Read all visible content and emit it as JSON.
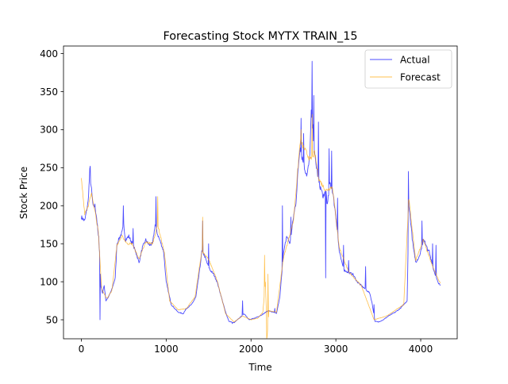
{
  "chart_data": {
    "type": "line",
    "title": "Forecasting Stock MYTX TRAIN_15",
    "xlabel": "Time",
    "ylabel": "Stock Price",
    "xlim": [
      -210,
      4430
    ],
    "ylim": [
      25,
      410
    ],
    "xticks": [
      0,
      1000,
      2000,
      3000,
      4000
    ],
    "yticks": [
      50,
      100,
      150,
      200,
      250,
      300,
      350,
      400
    ],
    "grid": false,
    "legend_position": "top-right",
    "series": [
      {
        "name": "Actual",
        "color": "#0000ff",
        "alpha": 0.7,
        "knots": [
          [
            0,
            185
          ],
          [
            40,
            180
          ],
          [
            60,
            192
          ],
          [
            80,
            205
          ],
          [
            100,
            245
          ],
          [
            120,
            220
          ],
          [
            140,
            198
          ],
          [
            160,
            200
          ],
          [
            180,
            185
          ],
          [
            200,
            160
          ],
          [
            215,
            140
          ],
          [
            230,
            95
          ],
          [
            250,
            85
          ],
          [
            270,
            95
          ],
          [
            290,
            75
          ],
          [
            320,
            80
          ],
          [
            360,
            90
          ],
          [
            400,
            105
          ],
          [
            420,
            150
          ],
          [
            450,
            158
          ],
          [
            480,
            165
          ],
          [
            500,
            175
          ],
          [
            520,
            155
          ],
          [
            560,
            160
          ],
          [
            600,
            150
          ],
          [
            640,
            140
          ],
          [
            680,
            125
          ],
          [
            720,
            145
          ],
          [
            760,
            155
          ],
          [
            800,
            148
          ],
          [
            840,
            150
          ],
          [
            870,
            175
          ],
          [
            900,
            162
          ],
          [
            940,
            150
          ],
          [
            970,
            140
          ],
          [
            1000,
            100
          ],
          [
            1030,
            85
          ],
          [
            1060,
            70
          ],
          [
            1100,
            65
          ],
          [
            1140,
            60
          ],
          [
            1200,
            58
          ],
          [
            1240,
            65
          ],
          [
            1300,
            70
          ],
          [
            1350,
            80
          ],
          [
            1400,
            120
          ],
          [
            1420,
            140
          ],
          [
            1450,
            135
          ],
          [
            1480,
            125
          ],
          [
            1520,
            115
          ],
          [
            1560,
            110
          ],
          [
            1600,
            100
          ],
          [
            1650,
            80
          ],
          [
            1700,
            60
          ],
          [
            1740,
            48
          ],
          [
            1800,
            46
          ],
          [
            1860,
            52
          ],
          [
            1920,
            58
          ],
          [
            1980,
            50
          ],
          [
            2040,
            52
          ],
          [
            2100,
            55
          ],
          [
            2150,
            58
          ],
          [
            2200,
            62
          ],
          [
            2260,
            60
          ],
          [
            2300,
            58
          ],
          [
            2340,
            80
          ],
          [
            2380,
            135
          ],
          [
            2420,
            160
          ],
          [
            2460,
            150
          ],
          [
            2500,
            185
          ],
          [
            2530,
            205
          ],
          [
            2560,
            255
          ],
          [
            2580,
            280
          ],
          [
            2600,
            265
          ],
          [
            2630,
            250
          ],
          [
            2660,
            240
          ],
          [
            2690,
            260
          ],
          [
            2710,
            320
          ],
          [
            2730,
            300
          ],
          [
            2750,
            265
          ],
          [
            2780,
            245
          ],
          [
            2800,
            230
          ],
          [
            2830,
            220
          ],
          [
            2860,
            210
          ],
          [
            2880,
            225
          ],
          [
            2900,
            200
          ],
          [
            2930,
            230
          ],
          [
            2960,
            220
          ],
          [
            2990,
            195
          ],
          [
            3010,
            175
          ],
          [
            3040,
            140
          ],
          [
            3070,
            125
          ],
          [
            3100,
            115
          ],
          [
            3150,
            112
          ],
          [
            3200,
            110
          ],
          [
            3250,
            100
          ],
          [
            3300,
            95
          ],
          [
            3350,
            90
          ],
          [
            3400,
            85
          ],
          [
            3430,
            70
          ],
          [
            3460,
            48
          ],
          [
            3500,
            47
          ],
          [
            3560,
            50
          ],
          [
            3620,
            55
          ],
          [
            3700,
            60
          ],
          [
            3760,
            65
          ],
          [
            3800,
            70
          ],
          [
            3840,
            75
          ],
          [
            3860,
            200
          ],
          [
            3880,
            180
          ],
          [
            3910,
            150
          ],
          [
            3940,
            125
          ],
          [
            3970,
            130
          ],
          [
            4000,
            140
          ],
          [
            4030,
            155
          ],
          [
            4060,
            150
          ],
          [
            4100,
            140
          ],
          [
            4140,
            120
          ],
          [
            4170,
            110
          ],
          [
            4200,
            100
          ],
          [
            4230,
            95
          ]
        ],
        "spikes": [
          [
            105,
            252
          ],
          [
            205,
            160
          ],
          [
            220,
            50
          ],
          [
            495,
            200
          ],
          [
            610,
            170
          ],
          [
            880,
            212
          ],
          [
            1430,
            180
          ],
          [
            1500,
            150
          ],
          [
            1780,
            45
          ],
          [
            1900,
            75
          ],
          [
            2280,
            65
          ],
          [
            2370,
            200
          ],
          [
            2470,
            185
          ],
          [
            2590,
            315
          ],
          [
            2620,
            295
          ],
          [
            2720,
            390
          ],
          [
            2740,
            345
          ],
          [
            2795,
            310
          ],
          [
            2850,
            210
          ],
          [
            2880,
            105
          ],
          [
            2920,
            275
          ],
          [
            2950,
            272
          ],
          [
            3020,
            210
          ],
          [
            3090,
            148
          ],
          [
            3150,
            128
          ],
          [
            3350,
            120
          ],
          [
            3450,
            70
          ],
          [
            3855,
            245
          ],
          [
            3900,
            155
          ],
          [
            4015,
            180
          ],
          [
            4080,
            140
          ],
          [
            4140,
            150
          ],
          [
            4180,
            148
          ]
        ]
      },
      {
        "name": "Forecast",
        "color": "#ffa500",
        "alpha": 0.7,
        "knots": [
          [
            0,
            235
          ],
          [
            40,
            190
          ],
          [
            80,
            200
          ],
          [
            120,
            215
          ],
          [
            160,
            195
          ],
          [
            200,
            165
          ],
          [
            240,
            90
          ],
          [
            300,
            78
          ],
          [
            360,
            88
          ],
          [
            420,
            148
          ],
          [
            480,
            160
          ],
          [
            540,
            150
          ],
          [
            600,
            150
          ],
          [
            680,
            130
          ],
          [
            760,
            152
          ],
          [
            840,
            150
          ],
          [
            900,
            175
          ],
          [
            980,
            138
          ],
          [
            1040,
            75
          ],
          [
            1140,
            63
          ],
          [
            1240,
            65
          ],
          [
            1340,
            80
          ],
          [
            1420,
            140
          ],
          [
            1500,
            130
          ],
          [
            1600,
            102
          ],
          [
            1700,
            58
          ],
          [
            1800,
            47
          ],
          [
            1900,
            55
          ],
          [
            2000,
            50
          ],
          [
            2080,
            52
          ],
          [
            2140,
            60
          ],
          [
            2170,
            100
          ],
          [
            2190,
            28
          ],
          [
            2210,
            62
          ],
          [
            2300,
            60
          ],
          [
            2380,
            130
          ],
          [
            2500,
            180
          ],
          [
            2580,
            285
          ],
          [
            2700,
            260
          ],
          [
            2750,
            270
          ],
          [
            2800,
            235
          ],
          [
            2880,
            220
          ],
          [
            2960,
            225
          ],
          [
            3040,
            145
          ],
          [
            3150,
            113
          ],
          [
            3300,
            95
          ],
          [
            3450,
            50
          ],
          [
            3600,
            55
          ],
          [
            3800,
            70
          ],
          [
            3860,
            210
          ],
          [
            3940,
            128
          ],
          [
            4030,
            155
          ],
          [
            4140,
            120
          ],
          [
            4230,
            98
          ]
        ],
        "spikes": [
          [
            900,
            212
          ],
          [
            1430,
            185
          ],
          [
            2160,
            135
          ],
          [
            2185,
            25
          ],
          [
            2200,
            110
          ],
          [
            2720,
            320
          ],
          [
            2590,
            300
          ],
          [
            3855,
            205
          ]
        ]
      }
    ]
  }
}
